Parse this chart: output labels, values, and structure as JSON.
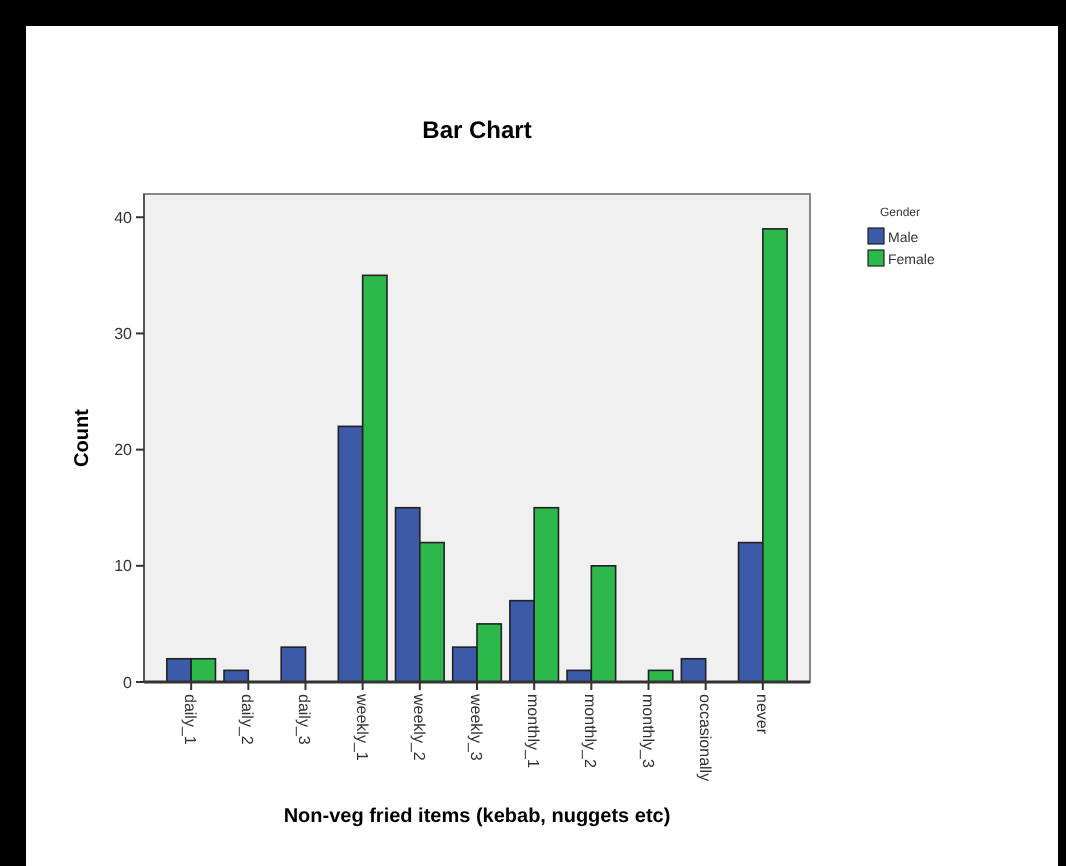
{
  "chart_data": {
    "type": "bar",
    "title": "Bar Chart",
    "xlabel": "Non-veg fried items (kebab, nuggets etc)",
    "ylabel": "Count",
    "legend_title": "Gender",
    "legend": "top right",
    "categories": [
      "daily_1",
      "daily_2",
      "daily_3",
      "weekly_1",
      "weekly_2",
      "weekly_3",
      "monthly_1",
      "monthly_2",
      "monthly_3",
      "occasionally",
      "never"
    ],
    "series": [
      {
        "name": "Male",
        "color": "#3c5aa8",
        "values": [
          2,
          1,
          3,
          22,
          15,
          3,
          7,
          1,
          null,
          2,
          12
        ]
      },
      {
        "name": "Female",
        "color": "#2db84c",
        "values": [
          2,
          null,
          null,
          35,
          12,
          5,
          15,
          10,
          1,
          null,
          39
        ]
      }
    ],
    "ylim": [
      0,
      42
    ],
    "yticks": [
      0,
      10,
      20,
      30,
      40
    ],
    "grid": false
  }
}
